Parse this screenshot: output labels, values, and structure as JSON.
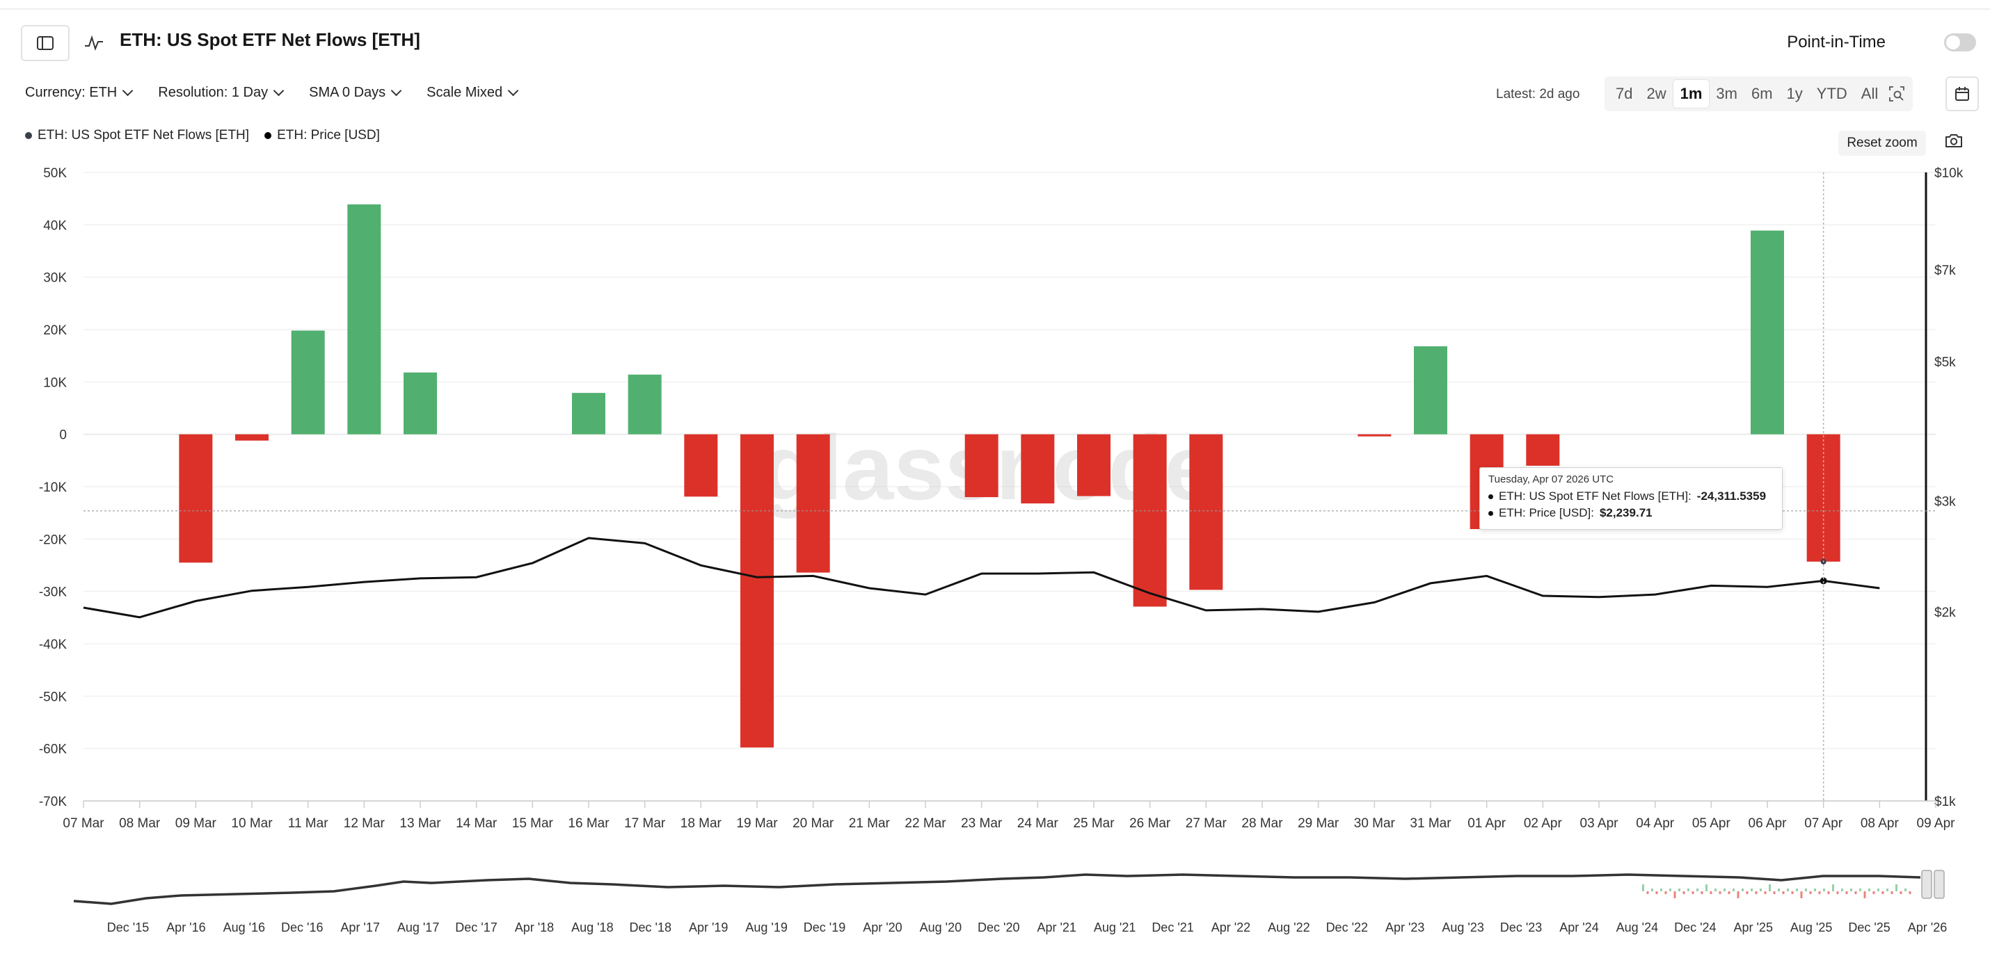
{
  "header": {
    "title": "ETH: US Spot ETF Net Flows [ETH]",
    "point_in_time_label": "Point-in-Time",
    "point_in_time_on": false
  },
  "toolbar": {
    "currency": "Currency: ETH",
    "resolution": "Resolution: 1 Day",
    "sma": "SMA 0 Days",
    "scale": "Scale Mixed",
    "latest": "Latest: 2d ago",
    "ranges": [
      "7d",
      "2w",
      "1m",
      "3m",
      "6m",
      "1y",
      "YTD",
      "All"
    ],
    "active_range": "1m"
  },
  "legend": [
    {
      "label": "ETH: US Spot ETF Net Flows [ETH]",
      "color": "#3a3f4b"
    },
    {
      "label": "ETH: Price [USD]",
      "color": "#000000"
    }
  ],
  "controls": {
    "reset_zoom": "Reset zoom"
  },
  "watermark": "glassnode",
  "tooltip": {
    "date": "Tuesday, Apr 07 2026 UTC",
    "flows_label": "ETH: US Spot ETF Net Flows [ETH]:",
    "flows_value": "-24,311.5359",
    "price_label": "ETH: Price [USD]:",
    "price_value": "$2,239.71"
  },
  "colors": {
    "positive": "#51b06f",
    "negative": "#dc3129",
    "line": "#111111"
  },
  "chart_data": {
    "type": "bar",
    "categories": [
      "07 Mar",
      "08 Mar",
      "09 Mar",
      "10 Mar",
      "11 Mar",
      "12 Mar",
      "13 Mar",
      "14 Mar",
      "15 Mar",
      "16 Mar",
      "17 Mar",
      "18 Mar",
      "19 Mar",
      "20 Mar",
      "21 Mar",
      "22 Mar",
      "23 Mar",
      "24 Mar",
      "25 Mar",
      "26 Mar",
      "27 Mar",
      "28 Mar",
      "29 Mar",
      "30 Mar",
      "31 Mar",
      "01 Apr",
      "02 Apr",
      "03 Apr",
      "04 Apr",
      "05 Apr",
      "06 Apr",
      "07 Apr",
      "08 Apr",
      "09 Apr"
    ],
    "series": [
      {
        "name": "ETH: US Spot ETF Net Flows [ETH]",
        "type": "bar",
        "axis": "left",
        "values": [
          null,
          null,
          -24500,
          -1200,
          19800,
          43900,
          11800,
          null,
          null,
          7900,
          11400,
          -11900,
          -59800,
          -26400,
          null,
          null,
          -12000,
          -13200,
          -11800,
          -32900,
          -29700,
          null,
          null,
          -400,
          16800,
          -18100,
          -6000,
          null,
          null,
          null,
          38900,
          -24311.5359,
          null,
          null
        ]
      },
      {
        "name": "ETH: Price [USD]",
        "type": "line",
        "axis": "right",
        "values": [
          2030,
          1960,
          2080,
          2160,
          2190,
          2230,
          2260,
          2270,
          2390,
          2620,
          2570,
          2370,
          2270,
          2280,
          2180,
          2130,
          2300,
          2300,
          2310,
          2140,
          2010,
          2020,
          2000,
          2070,
          2220,
          2280,
          2120,
          2110,
          2130,
          2200,
          2190,
          2239.71,
          2180,
          null
        ]
      }
    ],
    "y_left": {
      "min": -70000,
      "max": 50000,
      "ticks": [
        "50K",
        "40K",
        "30K",
        "20K",
        "10K",
        "0",
        "-10K",
        "-20K",
        "-30K",
        "-40K",
        "-50K",
        "-60K",
        "-70K"
      ]
    },
    "y_right": {
      "scale": "log",
      "min": 1000,
      "max": 10000,
      "ticks": [
        {
          "value": 10000,
          "label": "$10k"
        },
        {
          "value": 7000,
          "label": "$7k"
        },
        {
          "value": 5000,
          "label": "$5k"
        },
        {
          "value": 3000,
          "label": "$3k"
        },
        {
          "value": 2000,
          "label": "$2k"
        },
        {
          "value": 1000,
          "label": "$1k"
        }
      ]
    },
    "grid": true,
    "legend_position": "top-left",
    "highlight_index": 31,
    "navigator": {
      "labels": [
        "Dec '15",
        "Apr '16",
        "Aug '16",
        "Dec '16",
        "Apr '17",
        "Aug '17",
        "Dec '17",
        "Apr '18",
        "Aug '18",
        "Dec '18",
        "Apr '19",
        "Aug '19",
        "Dec '19",
        "Apr '20",
        "Aug '20",
        "Dec '20",
        "Apr '21",
        "Aug '21",
        "Dec '21",
        "Apr '22",
        "Aug '22",
        "Dec '22",
        "Apr '23",
        "Aug '23",
        "Dec '23",
        "Apr '24",
        "Aug '24",
        "Dec '24",
        "Apr '25",
        "Aug '25",
        "Dec '25",
        "Apr '26"
      ]
    }
  }
}
